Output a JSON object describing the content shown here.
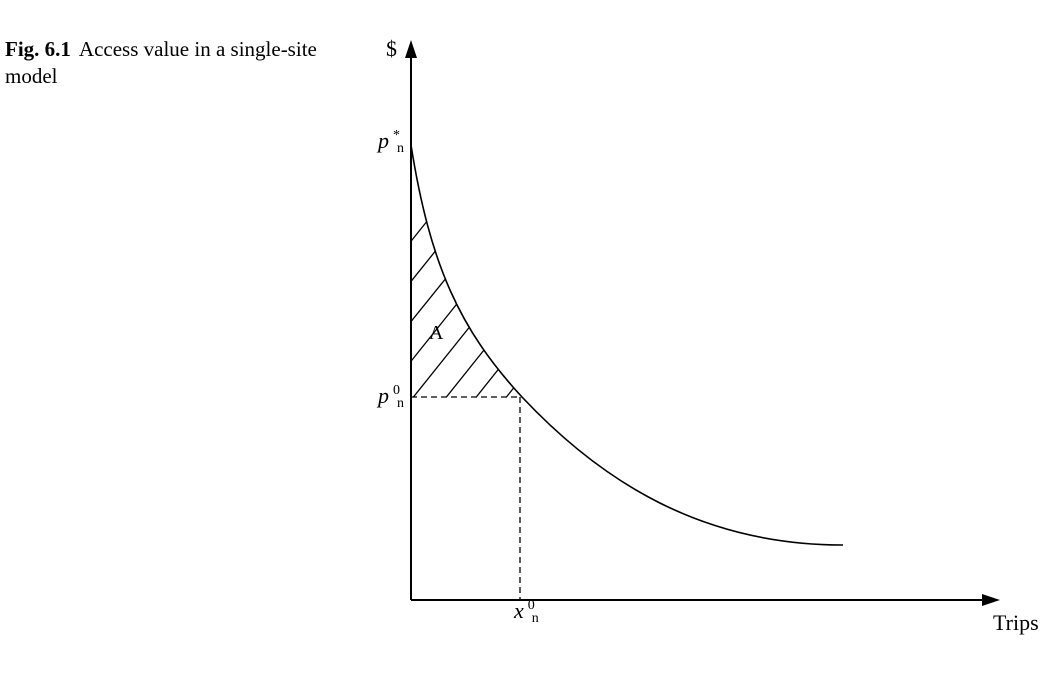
{
  "figure": {
    "label": "Fig. 6.1",
    "caption": "Access value in a single-site model"
  },
  "axes": {
    "y_label": "$",
    "x_label": "Trips"
  },
  "labels": {
    "choke_price": {
      "base": "p",
      "sub": "n",
      "sup": "*"
    },
    "price": {
      "base": "p",
      "sub": "n",
      "sup": "0"
    },
    "quantity": {
      "base": "x",
      "sub": "n",
      "sup": "0"
    },
    "area": "A"
  }
}
